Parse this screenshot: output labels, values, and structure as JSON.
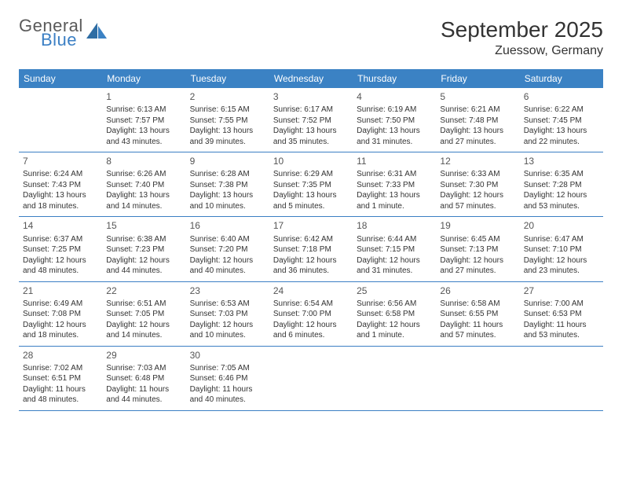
{
  "brand": {
    "line1": "General",
    "line2": "Blue"
  },
  "colors": {
    "header_bg": "#3b82c4",
    "border": "#3b7fc4",
    "text": "#333333",
    "logo_gray": "#5a5a5a",
    "logo_blue": "#3b7fc4"
  },
  "title": "September 2025",
  "location": "Zuessow, Germany",
  "weekdays": [
    "Sunday",
    "Monday",
    "Tuesday",
    "Wednesday",
    "Thursday",
    "Friday",
    "Saturday"
  ],
  "weeks": [
    [
      {
        "num": "",
        "lines": []
      },
      {
        "num": "1",
        "lines": [
          "Sunrise: 6:13 AM",
          "Sunset: 7:57 PM",
          "Daylight: 13 hours",
          "and 43 minutes."
        ]
      },
      {
        "num": "2",
        "lines": [
          "Sunrise: 6:15 AM",
          "Sunset: 7:55 PM",
          "Daylight: 13 hours",
          "and 39 minutes."
        ]
      },
      {
        "num": "3",
        "lines": [
          "Sunrise: 6:17 AM",
          "Sunset: 7:52 PM",
          "Daylight: 13 hours",
          "and 35 minutes."
        ]
      },
      {
        "num": "4",
        "lines": [
          "Sunrise: 6:19 AM",
          "Sunset: 7:50 PM",
          "Daylight: 13 hours",
          "and 31 minutes."
        ]
      },
      {
        "num": "5",
        "lines": [
          "Sunrise: 6:21 AM",
          "Sunset: 7:48 PM",
          "Daylight: 13 hours",
          "and 27 minutes."
        ]
      },
      {
        "num": "6",
        "lines": [
          "Sunrise: 6:22 AM",
          "Sunset: 7:45 PM",
          "Daylight: 13 hours",
          "and 22 minutes."
        ]
      }
    ],
    [
      {
        "num": "7",
        "lines": [
          "Sunrise: 6:24 AM",
          "Sunset: 7:43 PM",
          "Daylight: 13 hours",
          "and 18 minutes."
        ]
      },
      {
        "num": "8",
        "lines": [
          "Sunrise: 6:26 AM",
          "Sunset: 7:40 PM",
          "Daylight: 13 hours",
          "and 14 minutes."
        ]
      },
      {
        "num": "9",
        "lines": [
          "Sunrise: 6:28 AM",
          "Sunset: 7:38 PM",
          "Daylight: 13 hours",
          "and 10 minutes."
        ]
      },
      {
        "num": "10",
        "lines": [
          "Sunrise: 6:29 AM",
          "Sunset: 7:35 PM",
          "Daylight: 13 hours",
          "and 5 minutes."
        ]
      },
      {
        "num": "11",
        "lines": [
          "Sunrise: 6:31 AM",
          "Sunset: 7:33 PM",
          "Daylight: 13 hours",
          "and 1 minute."
        ]
      },
      {
        "num": "12",
        "lines": [
          "Sunrise: 6:33 AM",
          "Sunset: 7:30 PM",
          "Daylight: 12 hours",
          "and 57 minutes."
        ]
      },
      {
        "num": "13",
        "lines": [
          "Sunrise: 6:35 AM",
          "Sunset: 7:28 PM",
          "Daylight: 12 hours",
          "and 53 minutes."
        ]
      }
    ],
    [
      {
        "num": "14",
        "lines": [
          "Sunrise: 6:37 AM",
          "Sunset: 7:25 PM",
          "Daylight: 12 hours",
          "and 48 minutes."
        ]
      },
      {
        "num": "15",
        "lines": [
          "Sunrise: 6:38 AM",
          "Sunset: 7:23 PM",
          "Daylight: 12 hours",
          "and 44 minutes."
        ]
      },
      {
        "num": "16",
        "lines": [
          "Sunrise: 6:40 AM",
          "Sunset: 7:20 PM",
          "Daylight: 12 hours",
          "and 40 minutes."
        ]
      },
      {
        "num": "17",
        "lines": [
          "Sunrise: 6:42 AM",
          "Sunset: 7:18 PM",
          "Daylight: 12 hours",
          "and 36 minutes."
        ]
      },
      {
        "num": "18",
        "lines": [
          "Sunrise: 6:44 AM",
          "Sunset: 7:15 PM",
          "Daylight: 12 hours",
          "and 31 minutes."
        ]
      },
      {
        "num": "19",
        "lines": [
          "Sunrise: 6:45 AM",
          "Sunset: 7:13 PM",
          "Daylight: 12 hours",
          "and 27 minutes."
        ]
      },
      {
        "num": "20",
        "lines": [
          "Sunrise: 6:47 AM",
          "Sunset: 7:10 PM",
          "Daylight: 12 hours",
          "and 23 minutes."
        ]
      }
    ],
    [
      {
        "num": "21",
        "lines": [
          "Sunrise: 6:49 AM",
          "Sunset: 7:08 PM",
          "Daylight: 12 hours",
          "and 18 minutes."
        ]
      },
      {
        "num": "22",
        "lines": [
          "Sunrise: 6:51 AM",
          "Sunset: 7:05 PM",
          "Daylight: 12 hours",
          "and 14 minutes."
        ]
      },
      {
        "num": "23",
        "lines": [
          "Sunrise: 6:53 AM",
          "Sunset: 7:03 PM",
          "Daylight: 12 hours",
          "and 10 minutes."
        ]
      },
      {
        "num": "24",
        "lines": [
          "Sunrise: 6:54 AM",
          "Sunset: 7:00 PM",
          "Daylight: 12 hours",
          "and 6 minutes."
        ]
      },
      {
        "num": "25",
        "lines": [
          "Sunrise: 6:56 AM",
          "Sunset: 6:58 PM",
          "Daylight: 12 hours",
          "and 1 minute."
        ]
      },
      {
        "num": "26",
        "lines": [
          "Sunrise: 6:58 AM",
          "Sunset: 6:55 PM",
          "Daylight: 11 hours",
          "and 57 minutes."
        ]
      },
      {
        "num": "27",
        "lines": [
          "Sunrise: 7:00 AM",
          "Sunset: 6:53 PM",
          "Daylight: 11 hours",
          "and 53 minutes."
        ]
      }
    ],
    [
      {
        "num": "28",
        "lines": [
          "Sunrise: 7:02 AM",
          "Sunset: 6:51 PM",
          "Daylight: 11 hours",
          "and 48 minutes."
        ]
      },
      {
        "num": "29",
        "lines": [
          "Sunrise: 7:03 AM",
          "Sunset: 6:48 PM",
          "Daylight: 11 hours",
          "and 44 minutes."
        ]
      },
      {
        "num": "30",
        "lines": [
          "Sunrise: 7:05 AM",
          "Sunset: 6:46 PM",
          "Daylight: 11 hours",
          "and 40 minutes."
        ]
      },
      {
        "num": "",
        "lines": []
      },
      {
        "num": "",
        "lines": []
      },
      {
        "num": "",
        "lines": []
      },
      {
        "num": "",
        "lines": []
      }
    ]
  ]
}
